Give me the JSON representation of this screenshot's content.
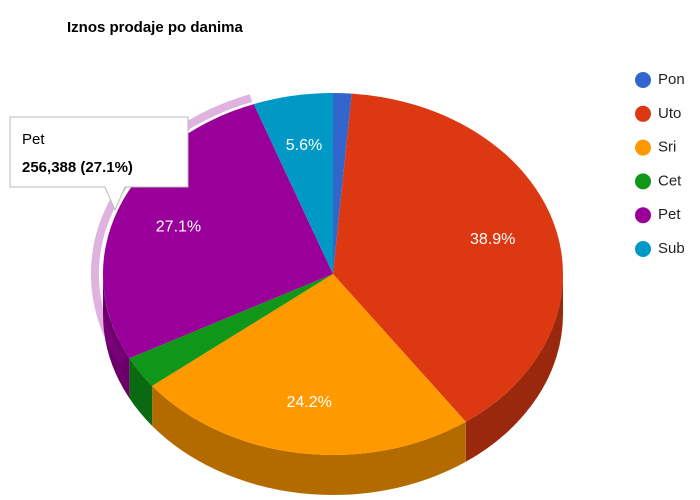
{
  "chart_data": {
    "type": "pie3d",
    "title": "Iznos prodaje po danima",
    "categories": [
      "Pon",
      "Uto",
      "Sri",
      "Cet",
      "Pet",
      "Sub"
    ],
    "values": [
      1.3,
      38.9,
      24.2,
      2.9,
      27.1,
      5.6
    ],
    "value_labels": [
      null,
      "38.9%",
      "24.2%",
      null,
      "27.1%",
      "5.6%"
    ],
    "colors": [
      "#3366cc",
      "#dc3912",
      "#ff9900",
      "#109618",
      "#990099",
      "#0099c6"
    ],
    "legend": "right",
    "highlighted": 4,
    "tooltip": {
      "title": "Pet",
      "text": "256,388 (27.1%)"
    }
  }
}
